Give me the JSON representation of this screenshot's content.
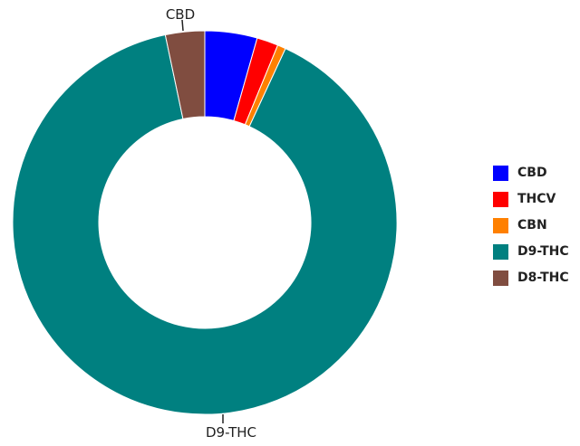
{
  "chart_data": {
    "type": "pie",
    "style": "donut",
    "title": "",
    "series": [
      {
        "name": "CBD",
        "value": 4.4,
        "color": "#0000ff"
      },
      {
        "name": "THCV",
        "value": 1.8,
        "color": "#ff0000"
      },
      {
        "name": "CBN",
        "value": 0.7,
        "color": "#ff8000"
      },
      {
        "name": "D9-THC",
        "value": 89.8,
        "color": "#008080"
      },
      {
        "name": "D8-THC",
        "value": 3.3,
        "color": "#804d40"
      }
    ],
    "outer_labels": [
      "CBD",
      "D9-THC"
    ],
    "legend": {
      "position": "right",
      "entries": [
        "CBD",
        "THCV",
        "CBN",
        "D9-THC",
        "D8-THC"
      ]
    }
  }
}
